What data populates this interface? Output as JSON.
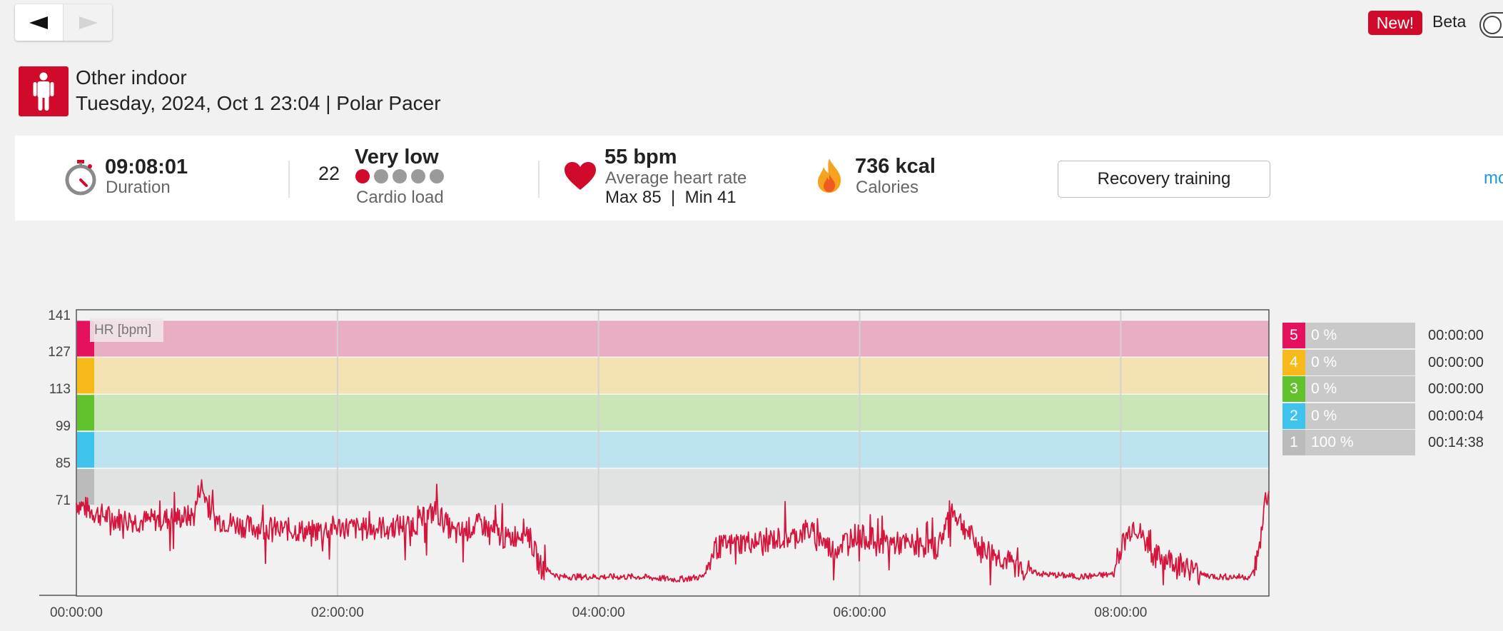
{
  "nav": {
    "prev_icon": "triangle-left-icon",
    "next_icon": "triangle-right-icon"
  },
  "top_right": {
    "new_badge": "New!",
    "beta_label": "Beta"
  },
  "header": {
    "sport_icon": "person-standing-icon",
    "sport_name": "Other indoor",
    "session_info": "Tuesday, 2024, Oct 1 23:04 | Polar Pacer"
  },
  "summary": {
    "duration": {
      "value": "09:08:01",
      "label": "Duration",
      "icon": "stopwatch-icon"
    },
    "cardio_load": {
      "value": "22",
      "level": "Very low",
      "label": "Cardio load",
      "filled_dots": 1,
      "total_dots": 5
    },
    "heart_rate": {
      "value": "55 bpm",
      "label": "Average heart rate",
      "max_min": "Max 85  |  Min 41",
      "icon": "heart-icon"
    },
    "calories": {
      "value": "736 kcal",
      "label": "Calories",
      "icon": "flame-icon"
    },
    "benefit_button": "Recovery training",
    "more_link": "mo"
  },
  "chart_data": {
    "type": "line",
    "title": "",
    "series_label": "HR [bpm]",
    "y_ticks": [
      141,
      127,
      113,
      99,
      85,
      71
    ],
    "x_ticks": [
      "00:00:00",
      "02:00:00",
      "04:00:00",
      "06:00:00",
      "08:00:00"
    ],
    "x_unit": "hours",
    "xlim": [
      0,
      9.135
    ],
    "ylim": [
      38,
      145
    ],
    "grid": true,
    "zones": [
      {
        "zone": "1",
        "min": 71,
        "max": 85,
        "color": "#bbbbbb",
        "band": "#e1e2e2"
      },
      {
        "zone": "2",
        "min": 85,
        "max": 99,
        "color": "#3ec3ec",
        "band": "#bee3f0"
      },
      {
        "zone": "3",
        "min": 99,
        "max": 113,
        "color": "#61c22d",
        "band": "#cae6b7"
      },
      {
        "zone": "4",
        "min": 113,
        "max": 127,
        "color": "#f8b91b",
        "band": "#f4e2b2"
      },
      {
        "zone": "5",
        "min": 127,
        "max": 141,
        "color": "#e5115f",
        "band": "#eaaec4"
      }
    ],
    "hr_color": "#d4163d",
    "series": [
      {
        "values": [
          [
            0,
            72
          ],
          [
            0.15,
            68
          ],
          [
            0.3,
            66
          ],
          [
            0.5,
            65
          ],
          [
            0.7,
            66
          ],
          [
            0.9,
            67
          ],
          [
            0.95,
            79
          ],
          [
            1.05,
            66
          ],
          [
            1.3,
            63
          ],
          [
            1.6,
            62
          ],
          [
            1.8,
            61
          ],
          [
            2.0,
            63
          ],
          [
            2.2,
            62
          ],
          [
            2.4,
            63
          ],
          [
            2.6,
            64
          ],
          [
            2.75,
            69
          ],
          [
            2.9,
            60
          ],
          [
            3.1,
            64
          ],
          [
            3.3,
            58
          ],
          [
            3.45,
            62
          ],
          [
            3.55,
            48
          ],
          [
            3.7,
            44
          ],
          [
            4.0,
            44
          ],
          [
            4.3,
            44
          ],
          [
            4.6,
            43
          ],
          [
            4.8,
            44
          ],
          [
            4.9,
            55
          ],
          [
            5.1,
            57
          ],
          [
            5.3,
            58
          ],
          [
            5.5,
            59
          ],
          [
            5.6,
            62
          ],
          [
            5.8,
            54
          ],
          [
            5.95,
            60
          ],
          [
            6.2,
            57
          ],
          [
            6.4,
            56
          ],
          [
            6.6,
            55
          ],
          [
            6.7,
            70
          ],
          [
            6.9,
            56
          ],
          [
            7.2,
            48
          ],
          [
            7.4,
            45
          ],
          [
            7.7,
            44
          ],
          [
            7.95,
            45
          ],
          [
            8.0,
            55
          ],
          [
            8.1,
            64
          ],
          [
            8.25,
            52
          ],
          [
            8.4,
            50
          ],
          [
            8.5,
            48
          ],
          [
            8.6,
            45
          ],
          [
            8.75,
            44
          ],
          [
            9.0,
            44
          ],
          [
            9.06,
            53
          ],
          [
            9.1,
            72
          ],
          [
            9.13,
            75
          ]
        ]
      }
    ],
    "zone_summary": [
      {
        "zone": "5",
        "percent": "0 %",
        "time": "00:00:00"
      },
      {
        "zone": "4",
        "percent": "0 %",
        "time": "00:00:00"
      },
      {
        "zone": "3",
        "percent": "0 %",
        "time": "00:00:00"
      },
      {
        "zone": "2",
        "percent": "0 %",
        "time": "00:00:04"
      },
      {
        "zone": "1",
        "percent": "100 %",
        "time": "00:14:38"
      }
    ]
  }
}
